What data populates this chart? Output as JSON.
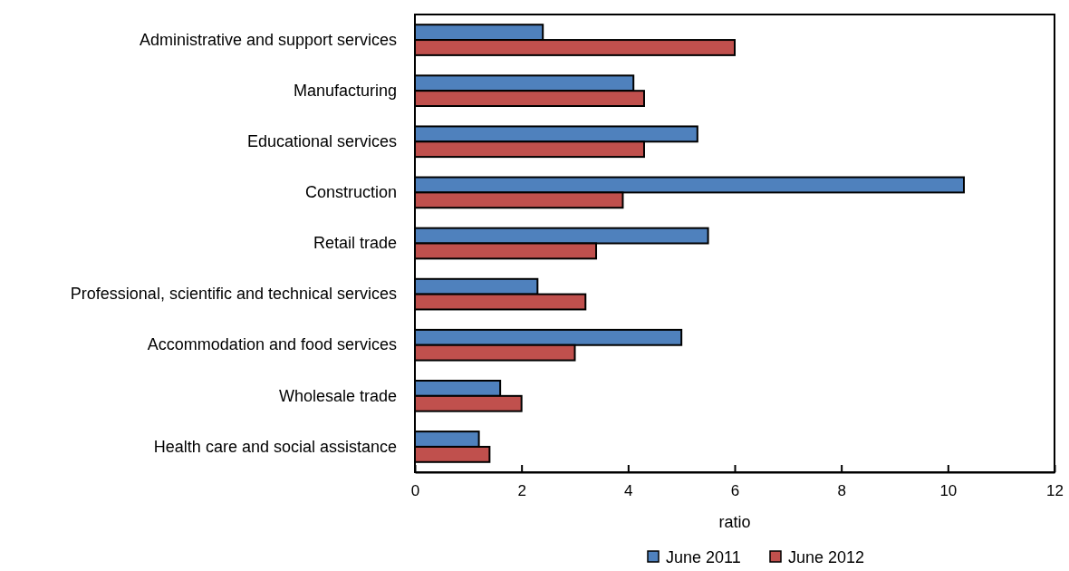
{
  "chart_data": {
    "type": "bar",
    "orientation": "horizontal",
    "xlabel": "ratio",
    "categories": [
      "Administrative and support services",
      "Manufacturing",
      "Educational services",
      "Construction",
      "Retail trade",
      "Professional, scientific and technical services",
      "Accommodation and food services",
      "Wholesale trade",
      "Health care and social assistance"
    ],
    "series": [
      {
        "name": "June 2011",
        "color": "#4f81bd",
        "values": [
          2.4,
          4.1,
          5.3,
          10.3,
          5.5,
          2.3,
          5.0,
          1.6,
          1.2
        ]
      },
      {
        "name": "June 2012",
        "color": "#c0504d",
        "values": [
          6.0,
          4.3,
          4.3,
          3.9,
          3.4,
          3.2,
          3.0,
          2.0,
          1.4
        ]
      }
    ],
    "xlim": [
      0,
      12
    ],
    "xticks": [
      0,
      2,
      4,
      6,
      8,
      10,
      12
    ],
    "grid": false,
    "legend": "bottom"
  }
}
